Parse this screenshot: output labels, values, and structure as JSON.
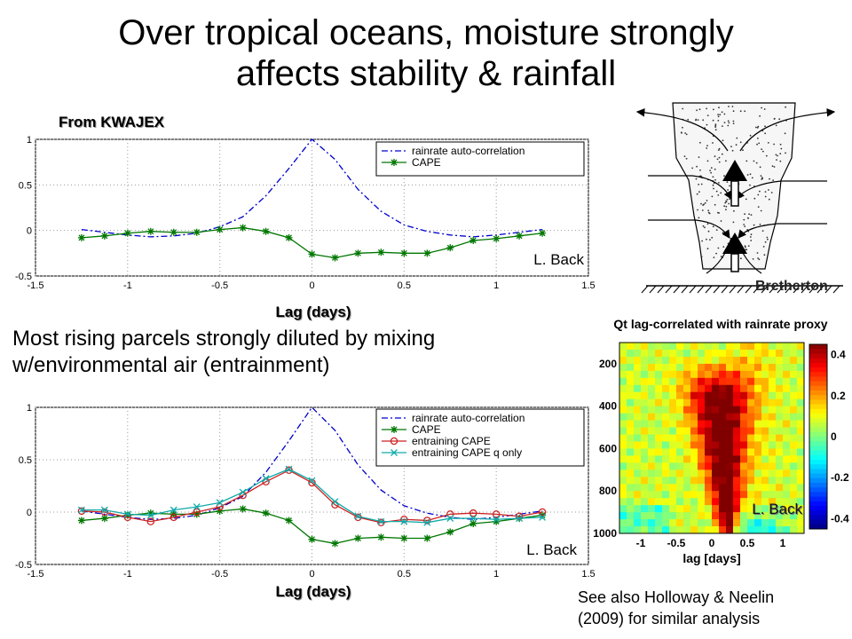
{
  "slide": {
    "title_line1": "Over tropical oceans, moisture strongly",
    "title_line2": "affects stability & rainfall",
    "source_note": "From KWAJEX",
    "body_line1": "Most rising parcels strongly diluted by mixing",
    "body_line2": "w/environmental air (entrainment)",
    "credit_bretherton": "Bretherton",
    "see_also_line1": "See also Holloway & Neelin",
    "see_also_line2": "(2009) for similar analysis"
  },
  "chart_data": [
    {
      "type": "line",
      "xlabel": "Lag (days)",
      "ylabel": "",
      "xlim": [
        -1.5,
        1.5
      ],
      "ylim": [
        -0.5,
        1
      ],
      "xticks": [
        "-1.5",
        "-1",
        "-0.5",
        "0",
        "0.5",
        "1",
        "1.5"
      ],
      "yticks": [
        "-0.5",
        "0",
        "0.5",
        "1"
      ],
      "grid": true,
      "legend": "top-right",
      "annotation": "L. Back",
      "x": [
        -1.25,
        -1.125,
        -1.0,
        -0.875,
        -0.75,
        -0.625,
        -0.5,
        -0.375,
        -0.25,
        -0.125,
        0.0,
        0.125,
        0.25,
        0.375,
        0.5,
        0.625,
        0.75,
        0.875,
        1.0,
        1.125,
        1.25
      ],
      "series": [
        {
          "name": "rainrate auto-correlation",
          "color": "#0000cc",
          "marker": "none",
          "values": [
            0.01,
            -0.02,
            -0.05,
            -0.07,
            -0.06,
            -0.03,
            0.04,
            0.15,
            0.38,
            0.68,
            1.0,
            0.78,
            0.45,
            0.21,
            0.06,
            -0.01,
            -0.05,
            -0.07,
            -0.05,
            -0.02,
            0.01
          ]
        },
        {
          "name": "CAPE",
          "color": "#007700",
          "marker": "star",
          "values": [
            -0.08,
            -0.06,
            -0.03,
            -0.01,
            -0.02,
            -0.02,
            0.01,
            0.03,
            -0.01,
            -0.08,
            -0.26,
            -0.3,
            -0.25,
            -0.24,
            -0.25,
            -0.25,
            -0.19,
            -0.11,
            -0.09,
            -0.06,
            -0.03
          ]
        }
      ]
    },
    {
      "type": "line",
      "xlabel": "Lag (days)",
      "ylabel": "",
      "xlim": [
        -1.5,
        1.5
      ],
      "ylim": [
        -0.5,
        1
      ],
      "xticks": [
        "-1.5",
        "-1",
        "-0.5",
        "0",
        "0.5",
        "1",
        "1.5"
      ],
      "yticks": [
        "-0.5",
        "0",
        "0.5",
        "1"
      ],
      "grid": true,
      "legend": "top-right",
      "annotation": "L. Back",
      "x": [
        -1.25,
        -1.125,
        -1.0,
        -0.875,
        -0.75,
        -0.625,
        -0.5,
        -0.375,
        -0.25,
        -0.125,
        0.0,
        0.125,
        0.25,
        0.375,
        0.5,
        0.625,
        0.75,
        0.875,
        1.0,
        1.125,
        1.25
      ],
      "series": [
        {
          "name": "rainrate auto-correlation",
          "color": "#0000cc",
          "marker": "none",
          "values": [
            0.01,
            -0.02,
            -0.05,
            -0.07,
            -0.06,
            -0.03,
            0.04,
            0.15,
            0.38,
            0.68,
            1.0,
            0.78,
            0.45,
            0.21,
            0.06,
            -0.01,
            -0.05,
            -0.07,
            -0.05,
            -0.02,
            0.01
          ]
        },
        {
          "name": "CAPE",
          "color": "#007700",
          "marker": "star",
          "values": [
            -0.08,
            -0.06,
            -0.03,
            -0.01,
            -0.02,
            -0.02,
            0.01,
            0.03,
            -0.01,
            -0.08,
            -0.26,
            -0.3,
            -0.25,
            -0.24,
            -0.25,
            -0.25,
            -0.19,
            -0.11,
            -0.09,
            -0.06,
            -0.03
          ]
        },
        {
          "name": "entraining CAPE",
          "color": "#cc2222",
          "marker": "circle",
          "values": [
            0.01,
            0.0,
            -0.05,
            -0.09,
            -0.05,
            0.0,
            0.05,
            0.16,
            0.29,
            0.4,
            0.28,
            0.07,
            -0.05,
            -0.1,
            -0.07,
            -0.08,
            -0.02,
            -0.01,
            -0.02,
            -0.04,
            0.0
          ]
        },
        {
          "name": "entraining CAPE q only",
          "color": "#11aaaa",
          "marker": "x",
          "values": [
            0.02,
            0.02,
            -0.02,
            -0.03,
            0.02,
            0.05,
            0.09,
            0.19,
            0.32,
            0.41,
            0.3,
            0.1,
            -0.04,
            -0.09,
            -0.09,
            -0.1,
            -0.06,
            -0.06,
            -0.07,
            -0.06,
            -0.05
          ]
        }
      ]
    },
    {
      "type": "heatmap",
      "title": "Qt lag-correlated with rainrate proxy",
      "xlabel": "lag [days]",
      "ylabel": "",
      "xlim": [
        -1.3,
        1.3
      ],
      "ylim": [
        1000,
        100
      ],
      "xticks": [
        "-1",
        "-0.5",
        "0",
        "0.5",
        "1"
      ],
      "yticks": [
        "200",
        "400",
        "600",
        "800",
        "1000"
      ],
      "colorbar_ticks": [
        "0.4",
        "0.2",
        "0",
        "-0.2",
        "-0.4"
      ],
      "colorbar_range": [
        -0.45,
        0.45
      ],
      "annotation": "L. Back"
    }
  ]
}
